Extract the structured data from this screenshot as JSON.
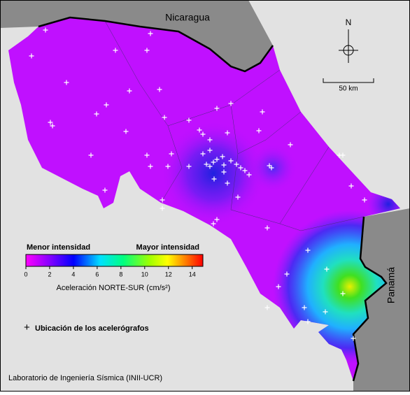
{
  "map": {
    "labels": {
      "north_country": "Nicaragua",
      "south_country": "Panamá"
    },
    "compass": "N",
    "scale_bar": "50 km",
    "colorbar": {
      "low_label": "Menor intensidad",
      "high_label": "Mayor intensidad",
      "lim": [
        0,
        14.9
      ],
      "ticks": [
        0,
        2,
        4,
        6,
        8,
        10,
        12,
        14
      ],
      "title": "Aceleración NORTE-SUR (cm/s²)"
    },
    "legend": "Ubicación de los acelerógrafos",
    "credit": "Laboratorio de Ingeniería Sísmica (INII-UCR)"
  }
}
